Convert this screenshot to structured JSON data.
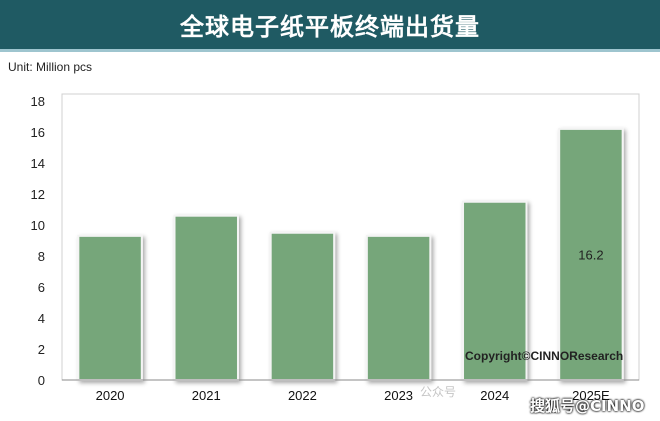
{
  "chart_data": {
    "type": "bar",
    "title": "全球电子纸平板终端出货量",
    "unit_label": "Unit: Million pcs",
    "categories": [
      "2020",
      "2021",
      "2022",
      "2023",
      "2024",
      "2025E"
    ],
    "values": [
      9.3,
      10.6,
      9.5,
      9.3,
      11.5,
      16.2
    ],
    "data_labels": [
      "",
      "",
      "",
      "",
      "",
      "16.2"
    ],
    "ylim": [
      0,
      18
    ],
    "yticks": [
      0,
      2,
      4,
      6,
      8,
      10,
      12,
      14,
      16,
      18
    ],
    "grid": false,
    "bar_color": "#76a67a",
    "copyright": "Copyright©CINNOResearch"
  },
  "colors": {
    "title_bar": "#1f5a63",
    "bar": "#76a67a"
  },
  "watermark": {
    "left": "公众号",
    "right": "搜狐号@CINNO"
  }
}
